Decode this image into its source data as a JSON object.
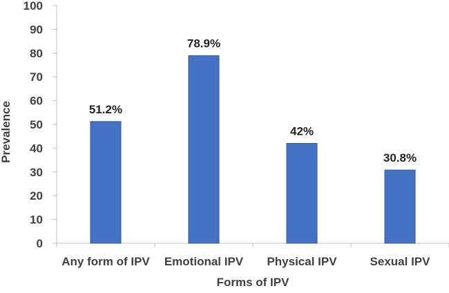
{
  "chart_data": {
    "type": "bar",
    "title": "",
    "xlabel": "Forms of IPV",
    "ylabel": "Prevalence",
    "categories": [
      "Any form of IPV",
      "Emotional IPV",
      "Physical IPV",
      "Sexual IPV"
    ],
    "values": [
      51.2,
      78.9,
      42,
      30.8
    ],
    "data_labels": [
      "51.2%",
      "78.9%",
      "42%",
      "30.8%"
    ],
    "ylim": [
      0,
      100
    ],
    "yticks": [
      0,
      10,
      20,
      30,
      40,
      50,
      60,
      70,
      80,
      90,
      100
    ],
    "grid": false,
    "legend": "none",
    "bar_color": "#4472C4"
  }
}
